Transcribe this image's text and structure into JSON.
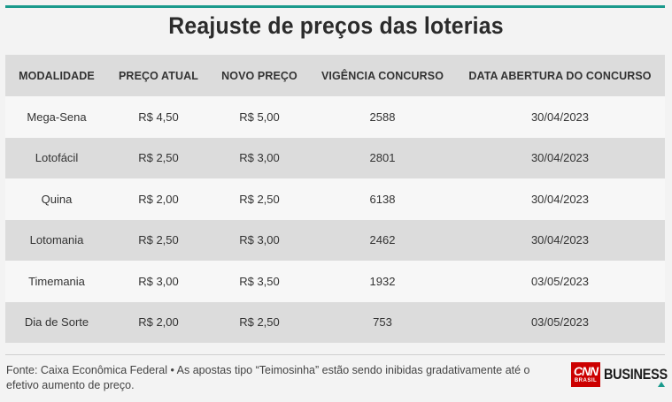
{
  "title": "Reajuste de preços das loterias",
  "table": {
    "headers": [
      "MODALIDADE",
      "PREÇO ATUAL",
      "NOVO PREÇO",
      "VIGÊNCIA CONCURSO",
      "DATA ABERTURA DO CONCURSO"
    ],
    "rows": [
      [
        "Mega-Sena",
        "R$ 4,50",
        "R$ 5,00",
        "2588",
        "30/04/2023"
      ],
      [
        "Lotofácil",
        "R$ 2,50",
        "R$ 3,00",
        "2801",
        "30/04/2023"
      ],
      [
        "Quina",
        "R$ 2,00",
        "R$ 2,50",
        "6138",
        "30/04/2023"
      ],
      [
        "Lotomania",
        "R$ 2,50",
        "R$ 3,00",
        "2462",
        "30/04/2023"
      ],
      [
        "Timemania",
        "R$ 3,00",
        "R$ 3,50",
        "1932",
        "03/05/2023"
      ],
      [
        "Dia de Sorte",
        "R$ 2,00",
        "R$ 2,50",
        "753",
        "03/05/2023"
      ]
    ]
  },
  "footnote": "Fonte: Caixa Econômica Federal • As apostas tipo “Teimosinha” estão sendo inibidas gradativamente até o efetivo aumento de preço.",
  "logo": {
    "cnn": "CNN",
    "sub": "BRASIL",
    "business": "BUSINESS"
  },
  "colors": {
    "accent": "#1a9a8c",
    "header_bg": "#dcdcdc",
    "logo_red": "#cc0000"
  }
}
